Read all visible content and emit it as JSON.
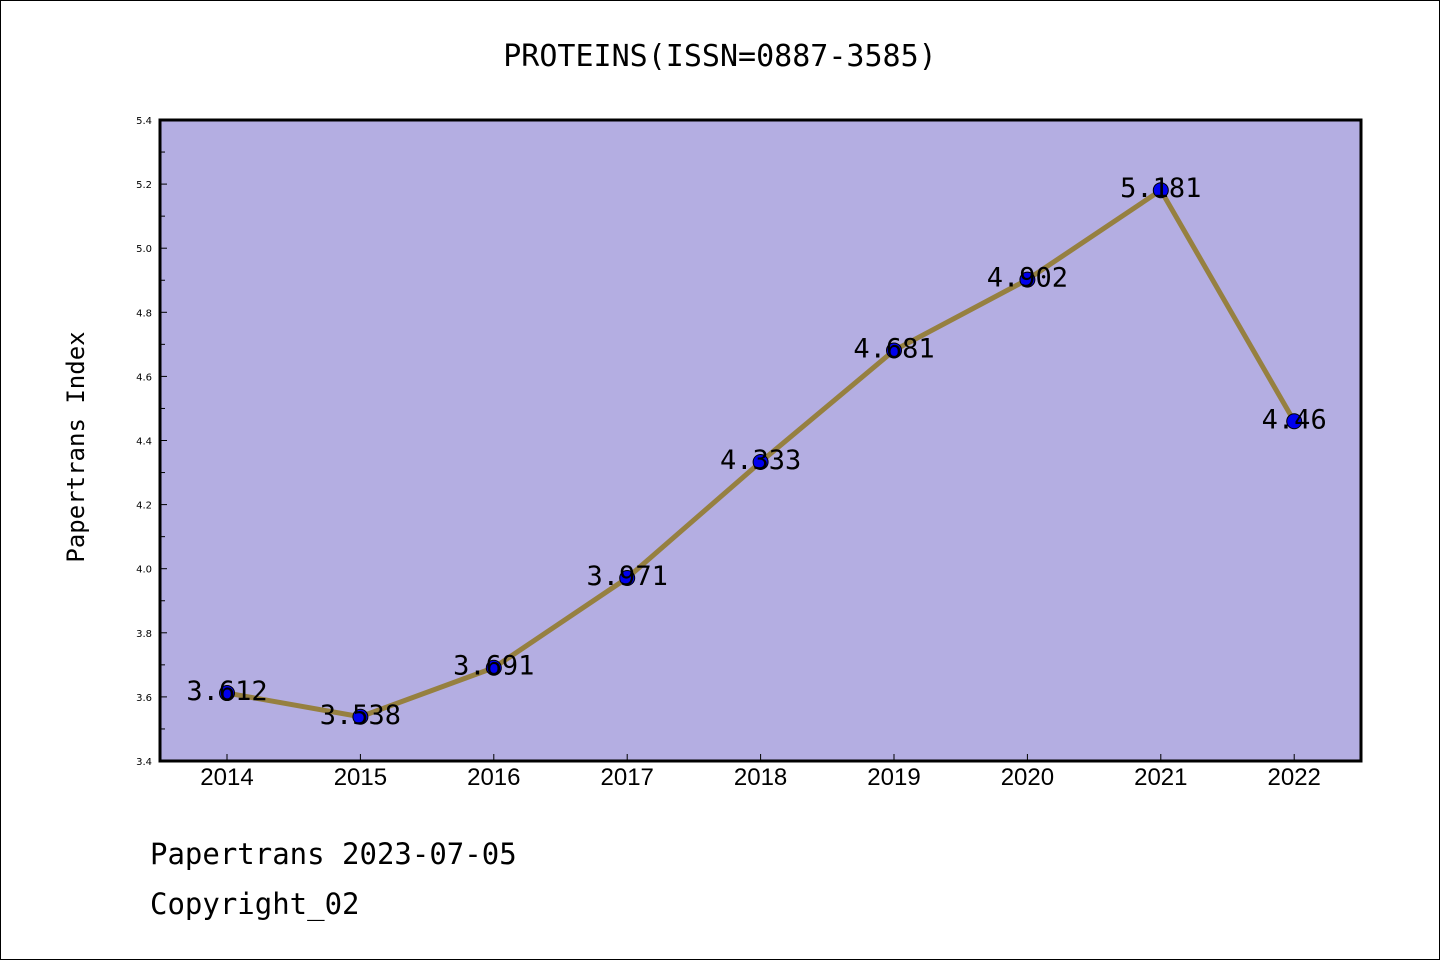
{
  "chart_data": {
    "type": "line",
    "title": "PROTEINS(ISSN=0887-3585)",
    "xlabel": "",
    "ylabel": "Papertrans Index",
    "categories": [
      "2014",
      "2015",
      "2016",
      "2017",
      "2018",
      "2019",
      "2020",
      "2021",
      "2022"
    ],
    "values": [
      3.612,
      3.538,
      3.691,
      3.971,
      4.333,
      4.681,
      4.902,
      5.181,
      4.46
    ],
    "data_labels": [
      "3.612",
      "3.538",
      "3.691",
      "3.971",
      "4.333",
      "4.681",
      "4.902",
      "5.181",
      "4.46"
    ],
    "ylim": [
      3.4,
      5.4
    ],
    "yticks": [
      "3.4",
      "3.6",
      "3.8",
      "4.0",
      "4.2",
      "4.4",
      "4.6",
      "4.8",
      "5.0",
      "5.2",
      "5.4"
    ],
    "grid": false,
    "colors": {
      "plot_background": "#b4aee2",
      "line": "#968040",
      "marker": "#0000ee"
    }
  },
  "footer": {
    "line1": "Papertrans 2023-07-05",
    "line2": "Copyright_02"
  }
}
